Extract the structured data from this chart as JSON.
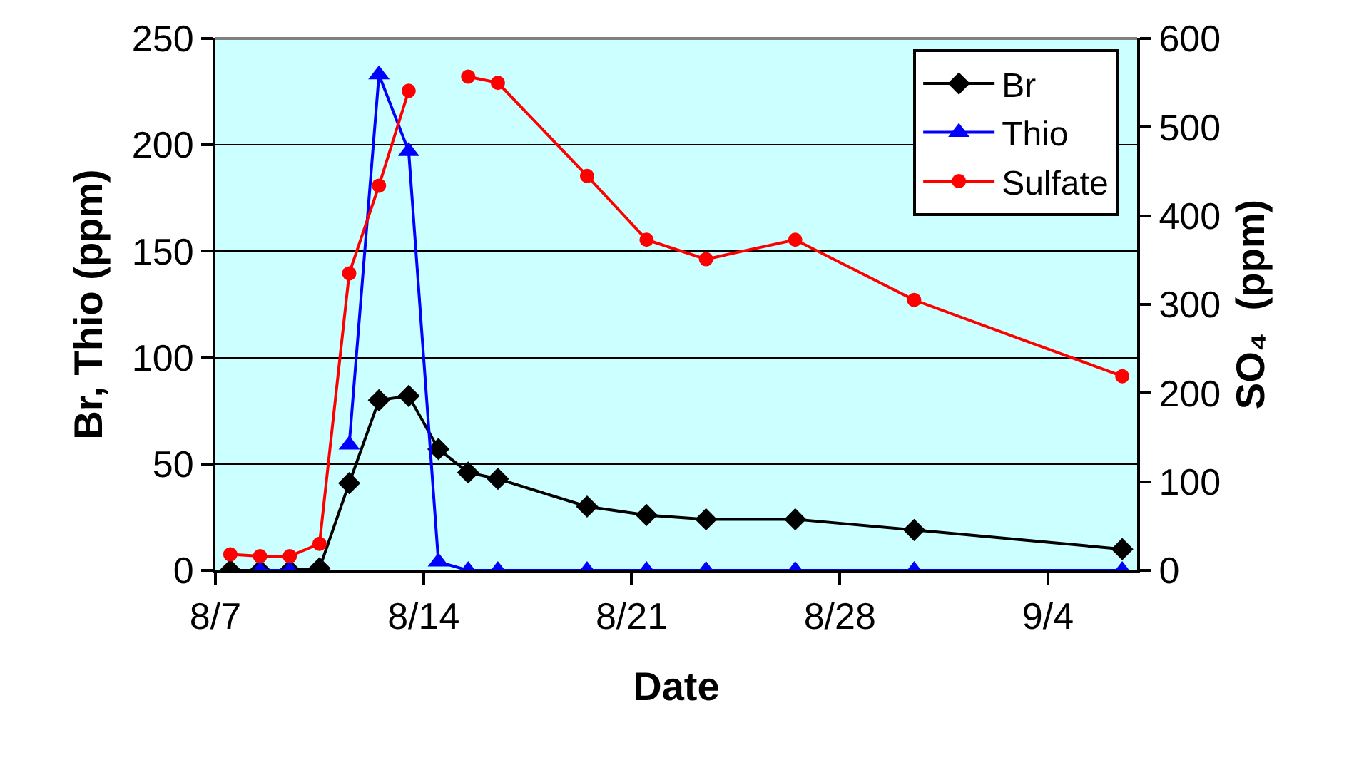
{
  "chart_data": {
    "type": "line",
    "xlabel": "Date",
    "ylabel": "Br, Thio (ppm)",
    "y2label": "SO₄  (ppm)",
    "x": [
      "--08-07T12:00",
      "--08-08T12:00",
      "--08-09T12:00",
      "--08-10T12:00",
      "--08-11T12:00",
      "--08-12T12:00",
      "--08-13T12:00",
      "--08-14T12:00",
      "--08-15T12:00",
      "--08-16T12:00",
      "--08-19T12:00",
      "--08-21T12:00",
      "--08-23T12:00",
      "--08-26T12:00",
      "--08-30T12:00",
      "--09-06T12:00"
    ],
    "series": [
      {
        "name": "Br",
        "color": "#000000",
        "marker": "diamond",
        "values": [
          0,
          0,
          0,
          1,
          41,
          80,
          82,
          57,
          46,
          43,
          30,
          26,
          24,
          24,
          19,
          10
        ]
      },
      {
        "name": "Thio",
        "color": "#0000ff",
        "marker": "triangle",
        "values": [
          null,
          0,
          0,
          null,
          59,
          233,
          197,
          4,
          0,
          0,
          0,
          0,
          0,
          0,
          0,
          0
        ]
      },
      {
        "name": "Sulfate",
        "color": "#ff0000",
        "marker": "circle",
        "axis": "y2",
        "values": [
          18,
          16,
          16,
          30,
          335,
          434,
          541,
          null,
          557,
          550,
          445,
          373,
          351,
          373,
          305,
          219
        ]
      }
    ],
    "xlim": [
      "--08-07",
      "--09-07"
    ],
    "xticks": [
      {
        "value": "--08-07",
        "label": "8/7"
      },
      {
        "value": "--08-14",
        "label": "8/14"
      },
      {
        "value": "--08-21",
        "label": "8/21"
      },
      {
        "value": "--08-28",
        "label": "8/28"
      },
      {
        "value": "--09-04",
        "label": "9/4"
      }
    ],
    "ylim": [
      0,
      250
    ],
    "yticks": [
      0,
      50,
      100,
      150,
      200,
      250
    ],
    "y2lim": [
      0,
      600
    ],
    "y2ticks": [
      0,
      100,
      200,
      300,
      400,
      500,
      600
    ],
    "grid": "y",
    "legend": "top right",
    "line_style": "solid"
  }
}
